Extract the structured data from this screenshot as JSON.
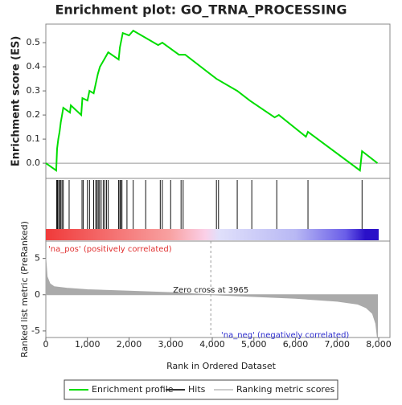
{
  "chart_data": [
    {
      "type": "line",
      "title": "Enrichment plot: GO_TRNA_PROCESSING",
      "ylabel": "Enrichment score (ES)",
      "color": "#00dd00",
      "x": [
        0,
        250,
        270,
        300,
        330,
        360,
        390,
        420,
        580,
        600,
        850,
        880,
        1000,
        1050,
        1150,
        1200,
        1250,
        1300,
        1400,
        1500,
        1750,
        1780,
        1850,
        2000,
        2100,
        2400,
        2700,
        2800,
        3200,
        3350,
        4100,
        4600,
        4900,
        5500,
        5600,
        6250,
        6300,
        7550,
        7600,
        7970
      ],
      "values": [
        0,
        -0.03,
        0.06,
        0.1,
        0.13,
        0.17,
        0.2,
        0.23,
        0.21,
        0.24,
        0.2,
        0.27,
        0.26,
        0.3,
        0.29,
        0.33,
        0.37,
        0.4,
        0.43,
        0.46,
        0.43,
        0.48,
        0.54,
        0.53,
        0.55,
        0.52,
        0.49,
        0.5,
        0.45,
        0.45,
        0.35,
        0.3,
        0.26,
        0.19,
        0.2,
        0.11,
        0.13,
        -0.03,
        0.05,
        0
      ],
      "hits": [
        260,
        280,
        310,
        330,
        360,
        390,
        420,
        560,
        870,
        900,
        1000,
        1050,
        1150,
        1200,
        1230,
        1260,
        1290,
        1330,
        1380,
        1420,
        1460,
        1500,
        1750,
        1780,
        1800,
        1830,
        1950,
        2100,
        2400,
        2750,
        2800,
        3000,
        3250,
        3300,
        4100,
        4150,
        4600,
        4950,
        5550,
        6300,
        7600
      ],
      "xlim": [
        0,
        8270
      ],
      "ylim": [
        -0.063,
        0.577
      ],
      "yticks": [
        {
          "value": 0,
          "label": "0.0"
        },
        0.1,
        0.2,
        0.3,
        0.4,
        0.5
      ],
      "legend": [
        "Enrichment profile",
        "Hits",
        "Ranking metric scores"
      ]
    },
    {
      "type": "area",
      "ylabel": "Ranked list metric (PreRanked)",
      "xlabel": "Rank in Ordered Dataset",
      "color": "#aaaaaa",
      "x": [
        0,
        30,
        100,
        200,
        500,
        1000,
        2000,
        3000,
        3965,
        5000,
        6000,
        7000,
        7500,
        7700,
        7850,
        7930,
        7970
      ],
      "values": [
        5,
        2.5,
        1.5,
        1.1,
        0.9,
        0.7,
        0.5,
        0.3,
        0,
        -0.25,
        -0.5,
        -0.9,
        -1.3,
        -1.8,
        -2.6,
        -4,
        -6
      ],
      "xlim": [
        0,
        8270
      ],
      "ylim": [
        -5.9,
        7.4
      ],
      "yticks": [
        -5,
        0,
        5
      ],
      "xticks": [
        0,
        {
          "value": 1000,
          "label": "1,000"
        },
        {
          "value": 2000,
          "label": "2,000"
        },
        {
          "value": 3000,
          "label": "3,000"
        },
        {
          "value": 4000,
          "label": "4,000"
        },
        {
          "value": 5000,
          "label": "5,000"
        },
        {
          "value": 6000,
          "label": "6,000"
        },
        {
          "value": 7000,
          "label": "7,000"
        },
        {
          "value": 8000,
          "label": "8,000"
        }
      ],
      "zero_cross": 3965,
      "annotation": "Zero cross at 3965",
      "pos_label": "'na_pos' (positively correlated)",
      "neg_label": "'na_neg' (negatively correlated)"
    }
  ]
}
